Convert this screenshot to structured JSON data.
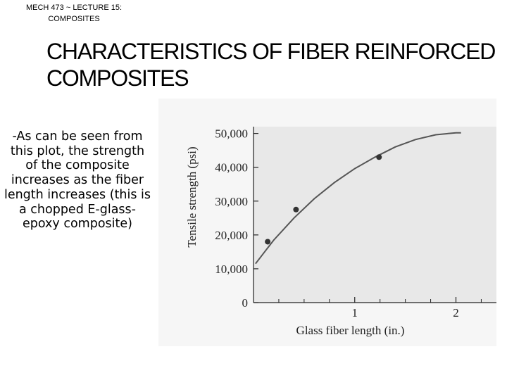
{
  "header": {
    "course_line": "MECH 473 ~ LECTURE 15:",
    "topic_line": "COMPOSITES"
  },
  "slide": {
    "title": "CHARACTERISTICS OF FIBER REINFORCED COMPOSITES",
    "body_text": "-As can be seen from this plot, the strength of the composite increases as the fiber length increases (this is a chopped E-glass-epoxy composite)"
  },
  "colors": {
    "plot_background": "#e8e8e8",
    "page_background": "#f6f6f6",
    "curve": "#555555",
    "points": "#333333"
  },
  "chart_data": {
    "type": "line",
    "title": "",
    "xlabel": "Glass fiber length (in.)",
    "ylabel": "Tensile strength (psi)",
    "xlim": [
      0,
      2.4
    ],
    "ylim": [
      0,
      52000
    ],
    "x_ticks": [
      1,
      2
    ],
    "x_tick_labels": [
      "1",
      "2"
    ],
    "x_minor_ticks": [
      0.25,
      0.5,
      0.75,
      1.25,
      1.5,
      1.75,
      2.25
    ],
    "y_ticks": [
      0,
      10000,
      20000,
      30000,
      40000,
      50000
    ],
    "y_tick_labels": [
      "0",
      "10,000",
      "20,000",
      "30,000",
      "40,000",
      "50,000"
    ],
    "grid": false,
    "series": [
      {
        "kind": "curve",
        "x": [
          0.02,
          0.2,
          0.4,
          0.6,
          0.8,
          1.0,
          1.2,
          1.4,
          1.6,
          1.8,
          2.0,
          2.05
        ],
        "y": [
          11500,
          18500,
          25000,
          30700,
          35500,
          39600,
          43000,
          46000,
          48200,
          49600,
          50200,
          50200
        ]
      },
      {
        "kind": "points",
        "x": [
          0.14,
          0.42,
          1.24
        ],
        "y": [
          18000,
          27500,
          43000
        ]
      }
    ]
  }
}
